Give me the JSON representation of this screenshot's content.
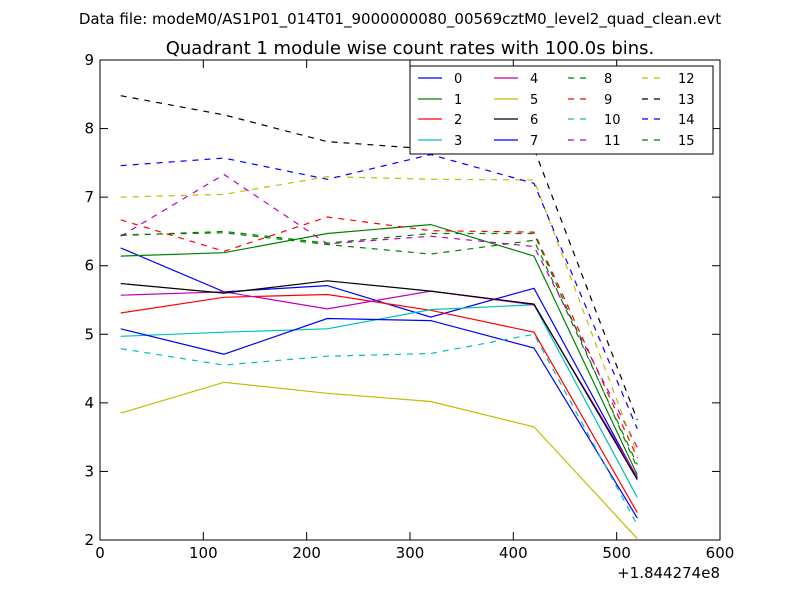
{
  "chart_data": {
    "type": "line",
    "suptitle": "Data file: modeM0/AS1P01_014T01_9000000080_00569cztM0_level2_quad_clean.evt",
    "title": "Quadrant 1 module wise count rates with 100.0s bins.",
    "xlabel": "",
    "ylabel": "",
    "x_offset_label": "+1.844274e8",
    "xlim": [
      0,
      600
    ],
    "ylim": [
      2,
      9
    ],
    "xticks": [
      "0",
      "100",
      "200",
      "300",
      "400",
      "500",
      "600"
    ],
    "yticks": [
      "2",
      "3",
      "4",
      "5",
      "6",
      "7",
      "8",
      "9"
    ],
    "grid": false,
    "legend_position": "top-right",
    "x": [
      20,
      120,
      220,
      320,
      420,
      520
    ],
    "series": [
      {
        "name": "0",
        "color": "#0000ff",
        "style": "solid",
        "values": [
          6.26,
          5.62,
          5.71,
          5.25,
          5.67,
          2.9
        ]
      },
      {
        "name": "1",
        "color": "#008000",
        "style": "solid",
        "values": [
          6.14,
          6.19,
          6.47,
          6.6,
          6.14,
          2.95
        ]
      },
      {
        "name": "2",
        "color": "#ff0000",
        "style": "solid",
        "values": [
          5.31,
          5.54,
          5.58,
          5.35,
          5.03,
          2.4
        ]
      },
      {
        "name": "3",
        "color": "#00bfbf",
        "style": "solid",
        "values": [
          4.97,
          5.03,
          5.08,
          5.36,
          5.43,
          2.62
        ]
      },
      {
        "name": "4",
        "color": "#bf00bf",
        "style": "solid",
        "values": [
          5.57,
          5.62,
          5.37,
          5.63,
          5.43,
          2.92
        ]
      },
      {
        "name": "5",
        "color": "#bfbf00",
        "style": "solid",
        "values": [
          3.85,
          4.3,
          4.14,
          4.02,
          3.65,
          2.02
        ]
      },
      {
        "name": "6",
        "color": "#000000",
        "style": "solid",
        "values": [
          5.74,
          5.6,
          5.78,
          5.63,
          5.44,
          2.88
        ]
      },
      {
        "name": "7",
        "color": "#0000ff",
        "style": "solid",
        "values": [
          5.08,
          4.71,
          5.23,
          5.2,
          4.8,
          2.32
        ]
      },
      {
        "name": "8",
        "color": "#008000",
        "style": "dashed",
        "values": [
          6.45,
          6.48,
          6.31,
          6.17,
          6.37,
          3.1
        ]
      },
      {
        "name": "9",
        "color": "#ff0000",
        "style": "dashed",
        "values": [
          6.67,
          6.21,
          6.71,
          6.51,
          6.49,
          3.2
        ]
      },
      {
        "name": "10",
        "color": "#00bfbf",
        "style": "dashed",
        "values": [
          4.79,
          4.55,
          4.68,
          4.72,
          5.0,
          2.22
        ]
      },
      {
        "name": "11",
        "color": "#bf00bf",
        "style": "dashed",
        "values": [
          6.43,
          7.33,
          6.32,
          6.43,
          6.28,
          3.35
        ]
      },
      {
        "name": "12",
        "color": "#bfbf00",
        "style": "dashed",
        "values": [
          7.0,
          7.04,
          7.3,
          7.26,
          7.25,
          3.25
        ]
      },
      {
        "name": "13",
        "color": "#000000",
        "style": "dashed",
        "values": [
          8.48,
          8.2,
          7.81,
          7.7,
          7.71,
          3.75
        ]
      },
      {
        "name": "14",
        "color": "#0000ff",
        "style": "dashed",
        "values": [
          7.46,
          7.57,
          7.26,
          7.62,
          7.2,
          3.62
        ]
      },
      {
        "name": "15",
        "color": "#008000",
        "style": "dashed",
        "values": [
          6.44,
          6.5,
          6.33,
          6.47,
          6.47,
          3.05
        ]
      }
    ]
  }
}
